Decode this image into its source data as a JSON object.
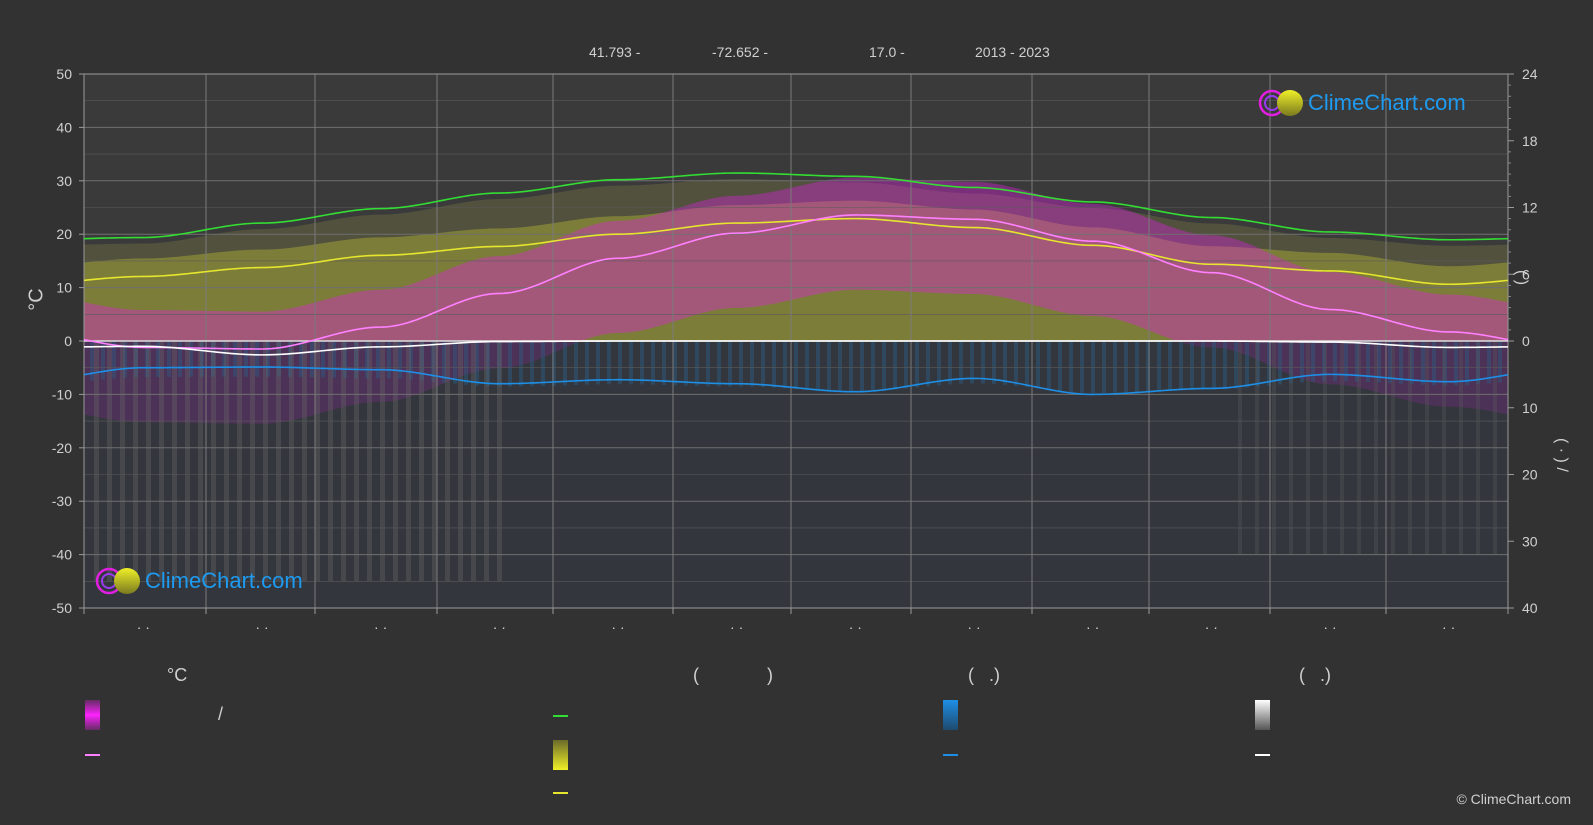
{
  "header": {
    "lat": "41.793 -",
    "lon": "-72.652 -",
    "elev": "17.0 -",
    "years": "2013 - 2023"
  },
  "logo": {
    "text": "ClimeChart.com"
  },
  "copyright": "© ClimeChart.com",
  "legend": {
    "temp_head": "°C",
    "sun_head_open": "(",
    "sun_head_close": ")",
    "rain_head": "(   .)",
    "snow_head": "(   .)",
    "slash": "/"
  },
  "colors": {
    "background": "#323232",
    "daylight": "#33dd33",
    "sunshine": "#e6e62e",
    "max_temp": "#ff80ff",
    "rain": "#1e8fe6",
    "snow": "#ffffff",
    "temp_range": "#e21ee2",
    "logo": "#1e9bf0"
  },
  "chart_data": {
    "type": "line",
    "x_months": [
      1,
      2,
      3,
      4,
      5,
      6,
      7,
      8,
      9,
      10,
      11,
      12
    ],
    "x_tick_labels": [
      "· ·",
      "· ·",
      "· ·",
      "· ·",
      "· ·",
      "· ·",
      "· ·",
      "· ·",
      "· ·",
      "· ·",
      "· ·",
      "· ·"
    ],
    "y_left": {
      "label": "°C",
      "ylim": [
        -50,
        50
      ],
      "ticks": [
        50,
        40,
        30,
        20,
        10,
        0,
        -10,
        -20,
        -30,
        -40,
        -50
      ]
    },
    "y_right_top": {
      "label": "(    )",
      "ylim": [
        0,
        24
      ],
      "ticks": [
        24,
        18,
        12,
        6,
        0
      ]
    },
    "y_right_bottom": {
      "label": "( · )  /",
      "ylim": [
        0,
        40
      ],
      "ticks": [
        10,
        20,
        30,
        40
      ]
    },
    "grid": true,
    "series": [
      {
        "key": "daylight",
        "axis": "hours",
        "values": [
          9.3,
          10.6,
          11.9,
          13.3,
          14.5,
          15.1,
          14.8,
          13.8,
          12.5,
          11.1,
          9.8,
          9.1
        ]
      },
      {
        "key": "sunshine",
        "axis": "hours",
        "values": [
          5.8,
          6.6,
          7.7,
          8.5,
          9.6,
          10.6,
          11.0,
          10.2,
          8.6,
          6.9,
          6.3,
          5.1
        ]
      },
      {
        "key": "max_temp",
        "axis": "celsius",
        "values": [
          -1.2,
          -1.5,
          2.6,
          8.9,
          15.5,
          20.2,
          23.6,
          22.8,
          18.7,
          12.8,
          5.9,
          1.7
        ]
      },
      {
        "key": "snow_line",
        "axis": "celsius",
        "values": [
          -1.0,
          -2.6,
          -1.1,
          -0.1,
          0,
          0,
          0,
          0,
          0,
          0,
          -0.2,
          -1.2
        ]
      },
      {
        "key": "rain",
        "axis": "mm",
        "values": [
          4.0,
          3.9,
          4.3,
          6.4,
          5.8,
          6.4,
          7.6,
          5.6,
          8.0,
          7.1,
          5.0,
          6.1
        ]
      }
    ]
  }
}
